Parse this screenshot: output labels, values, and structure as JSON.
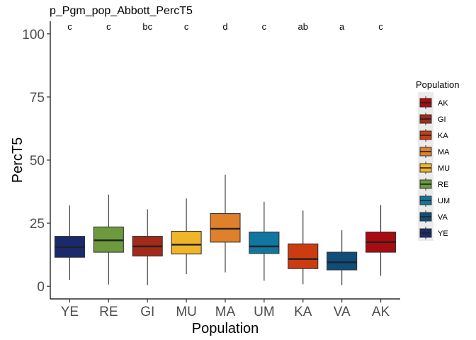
{
  "chart_data": {
    "type": "box",
    "title": "p_Pgm_pop_Abbott_PercT5",
    "xlabel": "Population",
    "ylabel": "PercT5",
    "ylim": [
      -5,
      105
    ],
    "yticks": [
      0,
      25,
      50,
      75,
      100
    ],
    "grid": false,
    "legend_position": "right",
    "categories": [
      "YE",
      "RE",
      "GI",
      "MU",
      "MA",
      "UM",
      "KA",
      "VA",
      "AK"
    ],
    "boxes": [
      {
        "category": "YE",
        "min": 2.5,
        "q1": 11.5,
        "median": 15.5,
        "q3": 19.8,
        "max": 32,
        "color": "#1a2a6c",
        "significance": "c"
      },
      {
        "category": "RE",
        "min": 0.7,
        "q1": 13.5,
        "median": 18.2,
        "q3": 23.5,
        "max": 36.3,
        "color": "#6d9a3f",
        "significance": "c"
      },
      {
        "category": "GI",
        "min": 0.5,
        "q1": 12,
        "median": 15.8,
        "q3": 19.8,
        "max": 30.5,
        "color": "#a32a18",
        "significance": "bc"
      },
      {
        "category": "MU",
        "min": 4.8,
        "q1": 12.8,
        "median": 16.5,
        "q3": 21.8,
        "max": 34.8,
        "color": "#f1b52a",
        "significance": "c"
      },
      {
        "category": "MA",
        "min": 5.5,
        "q1": 17.5,
        "median": 22.8,
        "q3": 28.8,
        "max": 44.2,
        "color": "#e0802a",
        "significance": "d"
      },
      {
        "category": "UM",
        "min": 2.2,
        "q1": 13,
        "median": 15.8,
        "q3": 21.5,
        "max": 33.5,
        "color": "#0f77a0",
        "significance": "c"
      },
      {
        "category": "KA",
        "min": 0.8,
        "q1": 7,
        "median": 10.8,
        "q3": 16.8,
        "max": 30,
        "color": "#cc3c10",
        "significance": "ab"
      },
      {
        "category": "VA",
        "min": 0.5,
        "q1": 6.5,
        "median": 9.5,
        "q3": 13.5,
        "max": 22.2,
        "color": "#0f4d7a",
        "significance": "a"
      },
      {
        "category": "AK",
        "min": 4.2,
        "q1": 13.5,
        "median": 17.5,
        "q3": 21.5,
        "max": 32.2,
        "color": "#a80b10",
        "significance": "c"
      }
    ],
    "legend": {
      "title": "Population",
      "entries": [
        {
          "label": "AK",
          "color": "#a80b10"
        },
        {
          "label": "GI",
          "color": "#a32a18"
        },
        {
          "label": "KA",
          "color": "#cc3c10"
        },
        {
          "label": "MA",
          "color": "#e0802a"
        },
        {
          "label": "MU",
          "color": "#f1b52a"
        },
        {
          "label": "RE",
          "color": "#6d9a3f"
        },
        {
          "label": "UM",
          "color": "#0f77a0"
        },
        {
          "label": "VA",
          "color": "#0f4d7a"
        },
        {
          "label": "YE",
          "color": "#1a2a6c"
        }
      ]
    }
  }
}
